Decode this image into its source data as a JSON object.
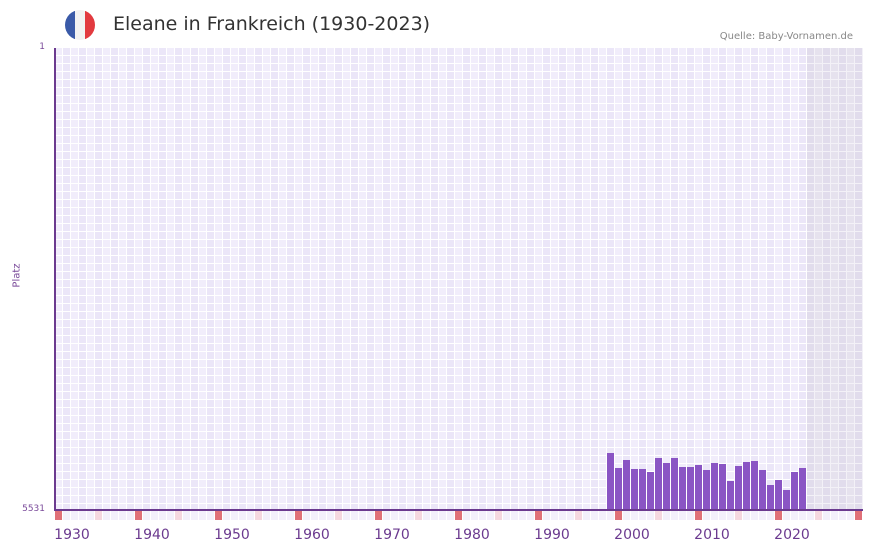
{
  "header": {
    "title": "Eleane in Frankreich (1930-2023)",
    "source": "Quelle: Baby-Vornamen.de",
    "flag_colors": [
      "#3a5aa8",
      "#f2f2f2",
      "#e23a3f"
    ]
  },
  "colors": {
    "bar": "#8a55c4",
    "axis": "#6b3a8f",
    "decade_marker": "#e07078",
    "half_decade_marker": "#f5d7df"
  },
  "chart_data": {
    "type": "bar",
    "title": "Eleane in Frankreich (1930-2023)",
    "xlabel": "",
    "ylabel": "Platz",
    "ylim": [
      5531,
      1
    ],
    "y_inverted": true,
    "y_ticks": [
      "1",
      "5531"
    ],
    "x_ticks": [
      "1930",
      "1940",
      "1950",
      "1960",
      "1970",
      "1980",
      "1990",
      "2000",
      "2010",
      "2020"
    ],
    "grid": true,
    "legend": null,
    "categories": [
      1997,
      1998,
      1999,
      2000,
      2001,
      2002,
      2003,
      2004,
      2005,
      2006,
      2007,
      2008,
      2009,
      2010,
      2011,
      2012,
      2013,
      2014,
      2015,
      2016,
      2017,
      2018,
      2019,
      2020,
      2021
    ],
    "values": [
      4849,
      5029,
      4933,
      5041,
      5041,
      5076,
      4909,
      4969,
      4909,
      5017,
      5017,
      4993,
      5053,
      4969,
      4981,
      5184,
      5005,
      4957,
      4945,
      5053,
      5232,
      5172,
      5292,
      5076,
      5029
    ],
    "shaded_range": [
      2022,
      2028
    ]
  }
}
